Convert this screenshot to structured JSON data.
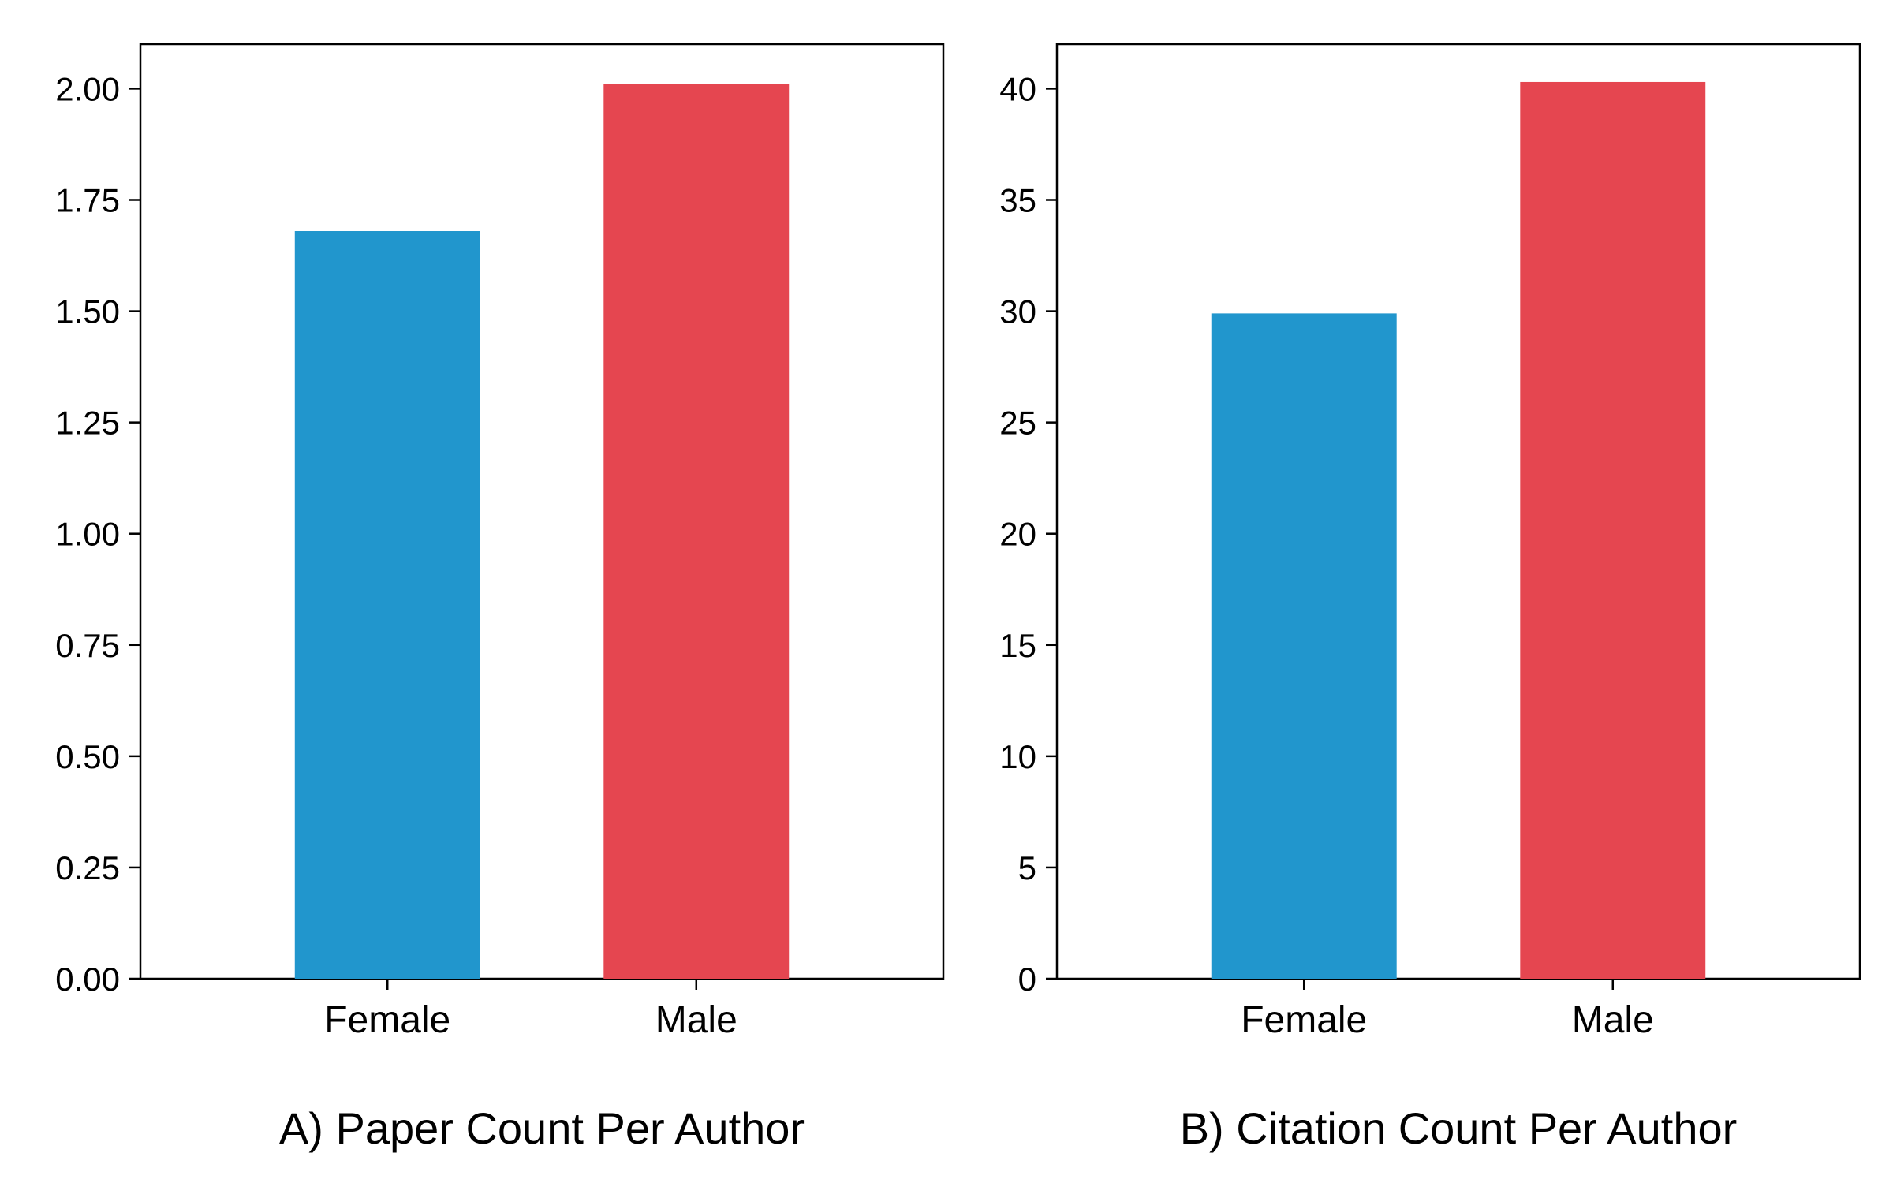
{
  "chart_data": [
    {
      "type": "bar",
      "caption": "A) Paper Count Per Author",
      "categories": [
        "Female",
        "Male"
      ],
      "values": [
        1.68,
        2.01
      ],
      "colors": [
        "#2196cd",
        "#e54650"
      ],
      "ylim": [
        0,
        2.1
      ],
      "yticks": [
        0,
        0.25,
        0.5,
        0.75,
        1.0,
        1.25,
        1.5,
        1.75,
        2.0
      ],
      "ytick_labels": [
        "0.00",
        "0.25",
        "0.50",
        "0.75",
        "1.00",
        "1.25",
        "1.50",
        "1.75",
        "2.00"
      ],
      "grid": false
    },
    {
      "type": "bar",
      "caption": "B) Citation Count Per Author",
      "categories": [
        "Female",
        "Male"
      ],
      "values": [
        29.9,
        40.3
      ],
      "colors": [
        "#2196cd",
        "#e54650"
      ],
      "ylim": [
        0,
        42
      ],
      "yticks": [
        0,
        5,
        10,
        15,
        20,
        25,
        30,
        35,
        40
      ],
      "ytick_labels": [
        "0",
        "5",
        "10",
        "15",
        "20",
        "25",
        "30",
        "35",
        "40"
      ],
      "grid": false
    }
  ]
}
